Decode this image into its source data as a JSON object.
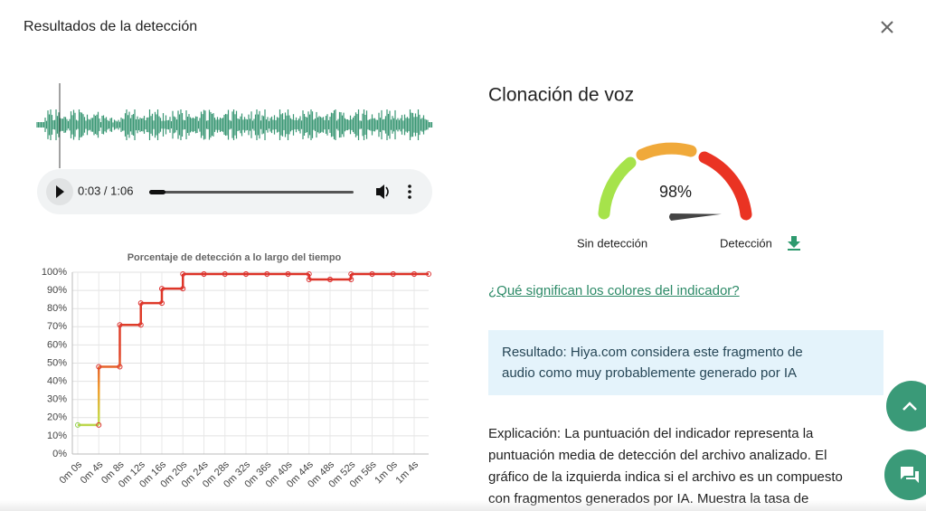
{
  "header": {
    "title": "Resultados de la detección"
  },
  "player": {
    "time": "0:03 / 1:06"
  },
  "chart_data": {
    "type": "step",
    "title": "Porcentaje de detección a lo largo del tiempo",
    "categories": [
      "0m 0s",
      "0m 4s",
      "0m 8s",
      "0m 12s",
      "0m 16s",
      "0m 20s",
      "0m 24s",
      "0m 28s",
      "0m 32s",
      "0m 36s",
      "0m 40s",
      "0m 44s",
      "0m 48s",
      "0m 52s",
      "0m 56s",
      "1m 0s",
      "1m 4s"
    ],
    "values": [
      16,
      48,
      71,
      83,
      91,
      99,
      99,
      99,
      99,
      99,
      99,
      96,
      96,
      99,
      99,
      99,
      99
    ],
    "ylim": [
      0,
      100
    ],
    "yticks": [
      {
        "value": 0,
        "label": "0%"
      },
      {
        "value": 10,
        "label": "10%"
      },
      {
        "value": 20,
        "label": "20%"
      },
      {
        "value": 30,
        "label": "30%"
      },
      {
        "value": 40,
        "label": "40%"
      },
      {
        "value": 50,
        "label": "50%"
      },
      {
        "value": 60,
        "label": "60%"
      },
      {
        "value": 70,
        "label": "70%"
      },
      {
        "value": 80,
        "label": "80%"
      },
      {
        "value": 90,
        "label": "90%"
      },
      {
        "value": 100,
        "label": "100%"
      }
    ],
    "grid": true
  },
  "panel": {
    "heading": "Clonación de voz",
    "gauge": {
      "value": 98,
      "value_label": "98%",
      "low_label": "Sin detección",
      "high_label": "Detección"
    },
    "link": "¿Qué significan los colores del indicador?",
    "result": "Resultado: Hiya.com considera este fragmento de audio como muy probablemente generado por IA",
    "explanation": "Explicación: La puntuación del indicador representa la puntuación media de detección del archivo analizado. El gráfico de la izquierda indica si el archivo es un compuesto con fragmentos generados por IA. Muestra la tasa de"
  }
}
